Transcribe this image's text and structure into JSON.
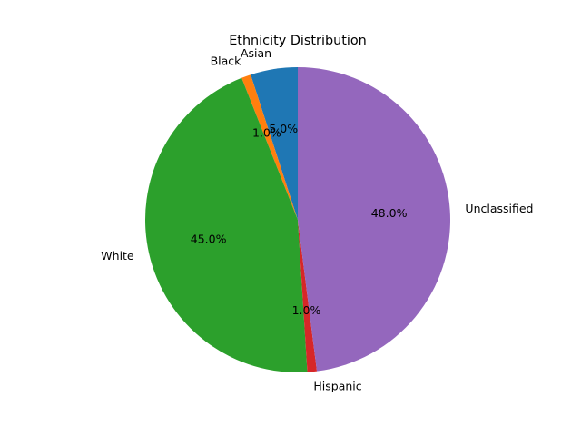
{
  "chart_data": {
    "type": "pie",
    "title": "Ethnicity Distribution",
    "labels": [
      "Asian",
      "Black",
      "White",
      "Hispanic",
      "Unclassified"
    ],
    "values": [
      5.0,
      1.0,
      45.0,
      1.0,
      48.0
    ],
    "percent_labels": [
      "5.0%",
      "1.0%",
      "45.0%",
      "1.0%",
      "48.0%"
    ],
    "colors": [
      "#1f77b4",
      "#ff7f0e",
      "#2ca02c",
      "#d62728",
      "#9467bd"
    ],
    "start_angle_deg": 90,
    "direction": "counterclockwise",
    "legend": "none"
  }
}
